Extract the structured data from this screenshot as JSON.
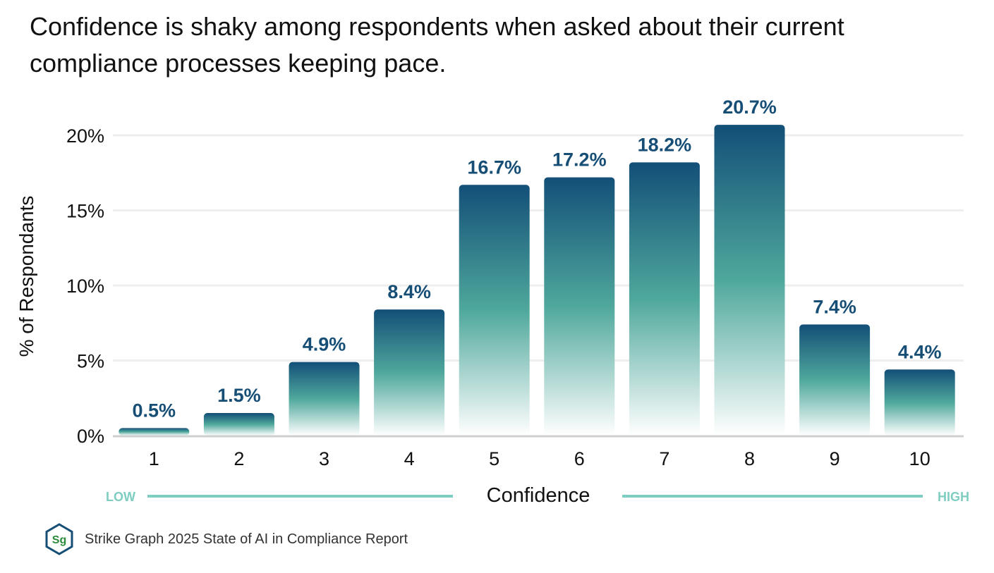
{
  "title": "Confidence is shaky among respondents when asked about their current compliance processes keeping pace.",
  "chart_data": {
    "type": "bar",
    "categories": [
      "1",
      "2",
      "3",
      "4",
      "5",
      "6",
      "7",
      "8",
      "9",
      "10"
    ],
    "values": [
      0.5,
      1.5,
      4.9,
      8.4,
      16.7,
      17.2,
      18.2,
      20.7,
      7.4,
      4.4
    ],
    "data_labels": [
      "0.5%",
      "1.5%",
      "4.9%",
      "8.4%",
      "16.7%",
      "17.2%",
      "18.2%",
      "20.7%",
      "7.4%",
      "4.4%"
    ],
    "ylabel": "% of Respondants",
    "xlabel": "Confidence",
    "ylim": [
      0,
      20
    ],
    "yticks": [
      0,
      5,
      10,
      15,
      20
    ],
    "ytick_labels": [
      "0%",
      "5%",
      "10%",
      "15%",
      "20%"
    ],
    "scale_low_label": "LOW",
    "scale_high_label": "HIGH",
    "grid": true
  },
  "footer": {
    "logo_text": "Sg",
    "source": "Strike Graph 2025 State of AI in Compliance Report"
  },
  "colors": {
    "bar_top": "#134f78",
    "bar_mid": "#4fa89c",
    "bar_bottom": "#ffffff",
    "label": "#174e75",
    "accent": "#7ecdc1",
    "grid": "#eeeeee",
    "axis": "#cfcfcf",
    "logo_border": "#174e75",
    "logo_text": "#2e8b3a"
  }
}
